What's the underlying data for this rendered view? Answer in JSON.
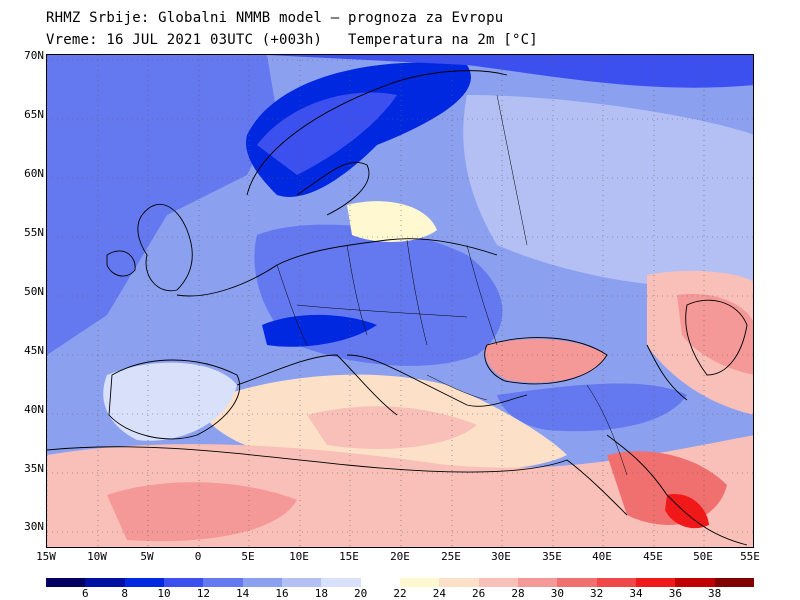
{
  "header": {
    "line1": "RHMZ Srbije: Globalni NMMB model — prognoza za Evropu",
    "line2a": "Vreme: 16 JUL 2021 03UTC (+003h)",
    "line2b": "Temperatura na 2m [°C]"
  },
  "axes": {
    "lat_labels": [
      "70N",
      "65N",
      "60N",
      "55N",
      "50N",
      "45N",
      "40N",
      "35N",
      "30N"
    ],
    "lon_labels": [
      "15W",
      "10W",
      "5W",
      "0",
      "5E",
      "10E",
      "15E",
      "20E",
      "25E",
      "30E",
      "35E",
      "40E",
      "45E",
      "50E",
      "55E"
    ]
  },
  "colorbar": {
    "colors": [
      "#000060",
      "#0010a0",
      "#0028e0",
      "#3c50f0",
      "#6478f0",
      "#8ca0f0",
      "#b4c0f4",
      "#d8e0fa",
      "#ffffff",
      "#fff8d0",
      "#fce0c8",
      "#f8c0b8",
      "#f49898",
      "#f07070",
      "#f04848",
      "#f01818",
      "#c00000",
      "#800000"
    ],
    "labels": [
      "6",
      "8",
      "10",
      "12",
      "14",
      "16",
      "18",
      "20",
      "22",
      "24",
      "26",
      "28",
      "30",
      "32",
      "34",
      "36",
      "38"
    ]
  },
  "map_regions": {
    "sea_color": "#7890f0",
    "warm_land": "#fce0c8",
    "hot_land": "#f49898",
    "cool_land": "#8ca0f0",
    "cold_land": "#0028e0"
  }
}
